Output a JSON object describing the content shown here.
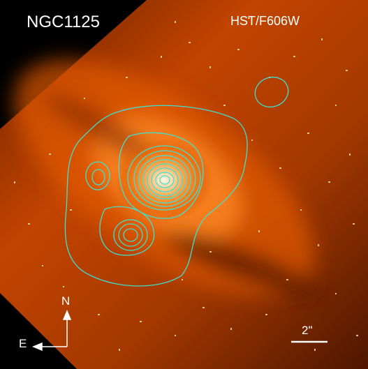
{
  "image": {
    "object_name": "NGC1125",
    "instrument_filter": "HST/F606W",
    "compass": {
      "north_label": "N",
      "east_label": "E"
    },
    "scale_bar_label": "2\"",
    "contour_color": "#40e0d0"
  }
}
